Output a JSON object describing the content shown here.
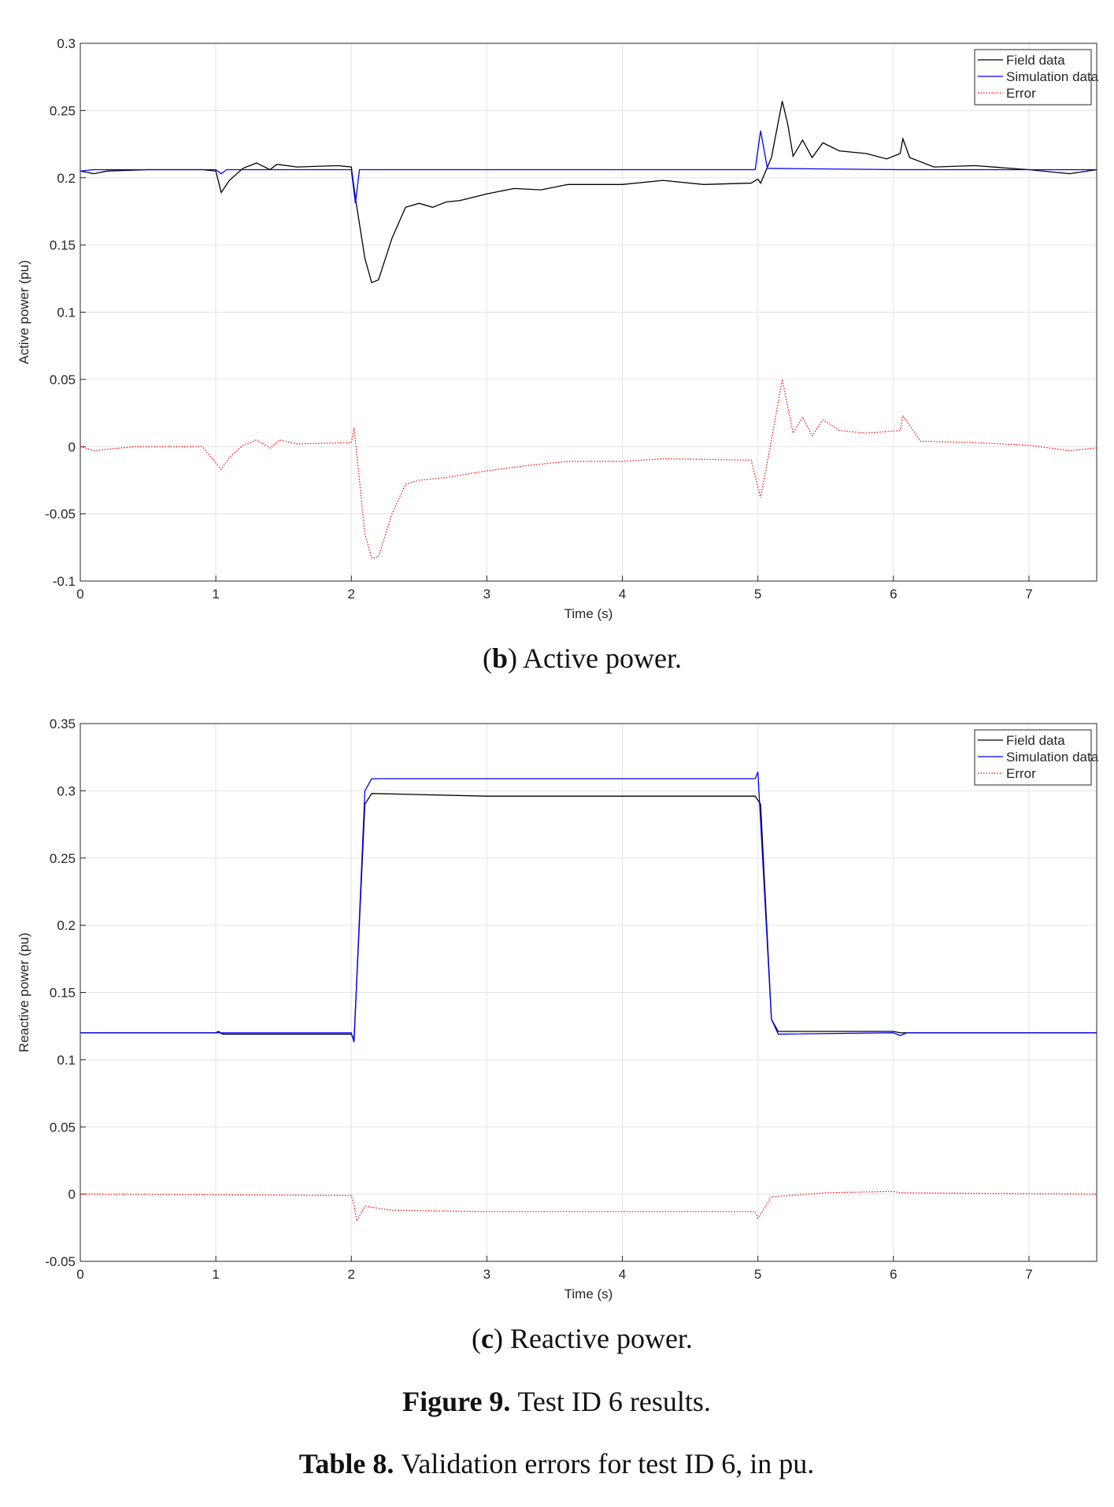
{
  "chart_data": [
    {
      "type": "line",
      "ylabel": "Active power (pu)",
      "xlabel": "Time (s)",
      "caption_parts": [
        "(",
        "b",
        ") Active power."
      ],
      "xlim": [
        0,
        7.5
      ],
      "xticks": [
        0,
        1,
        2,
        3,
        4,
        5,
        6,
        7
      ],
      "ylim": [
        -0.1,
        0.3
      ],
      "yticks": [
        -0.1,
        -0.05,
        0,
        0.05,
        0.1,
        0.15,
        0.2,
        0.25,
        0.3
      ],
      "grid": true,
      "legend": "upper right",
      "series": [
        {
          "name": "Field data",
          "color": "#000000",
          "style": "solid",
          "x": [
            0,
            0.1,
            0.2,
            0.5,
            0.9,
            1.0,
            1.04,
            1.1,
            1.2,
            1.3,
            1.4,
            1.45,
            1.6,
            1.9,
            2.0,
            2.03,
            2.1,
            2.15,
            2.2,
            2.3,
            2.4,
            2.5,
            2.6,
            2.7,
            2.8,
            3.0,
            3.2,
            3.4,
            3.6,
            4.0,
            4.3,
            4.6,
            4.95,
            5.0,
            5.02,
            5.1,
            5.18,
            5.22,
            5.26,
            5.33,
            5.4,
            5.48,
            5.6,
            5.8,
            5.95,
            6.05,
            6.07,
            6.12,
            6.3,
            6.6,
            7.0,
            7.3,
            7.5
          ],
          "values": [
            0.205,
            0.203,
            0.205,
            0.206,
            0.206,
            0.205,
            0.189,
            0.198,
            0.207,
            0.211,
            0.206,
            0.21,
            0.208,
            0.209,
            0.208,
            0.185,
            0.14,
            0.122,
            0.124,
            0.155,
            0.178,
            0.181,
            0.178,
            0.182,
            0.183,
            0.188,
            0.192,
            0.191,
            0.195,
            0.195,
            0.198,
            0.195,
            0.196,
            0.199,
            0.196,
            0.215,
            0.257,
            0.24,
            0.216,
            0.228,
            0.215,
            0.226,
            0.22,
            0.218,
            0.214,
            0.218,
            0.229,
            0.215,
            0.208,
            0.209,
            0.206,
            0.203,
            0.206
          ]
        },
        {
          "name": "Simulation data",
          "color": "#0000ff",
          "style": "solid",
          "x": [
            0,
            0.1,
            0.5,
            1.0,
            1.04,
            1.08,
            2.0,
            2.03,
            2.06,
            4.98,
            5.02,
            5.07,
            6.05,
            7.5
          ],
          "values": [
            0.205,
            0.206,
            0.206,
            0.206,
            0.203,
            0.206,
            0.206,
            0.181,
            0.206,
            0.206,
            0.235,
            0.207,
            0.206,
            0.206
          ]
        },
        {
          "name": "Error",
          "color": "#ff0000",
          "style": "dotted",
          "x": [
            0,
            0.1,
            0.4,
            0.9,
            1.04,
            1.1,
            1.2,
            1.3,
            1.4,
            1.47,
            1.6,
            2.0,
            2.02,
            2.1,
            2.15,
            2.2,
            2.3,
            2.4,
            2.5,
            2.7,
            3.0,
            3.3,
            3.6,
            4.0,
            4.3,
            4.95,
            5.02,
            5.1,
            5.18,
            5.26,
            5.33,
            5.4,
            5.48,
            5.6,
            5.8,
            6.05,
            6.07,
            6.2,
            6.6,
            7.0,
            7.3,
            7.5
          ],
          "values": [
            0,
            -0.003,
            0,
            0,
            -0.017,
            -0.008,
            0.001,
            0.005,
            -0.001,
            0.005,
            0.002,
            0.003,
            0.014,
            -0.065,
            -0.083,
            -0.082,
            -0.05,
            -0.028,
            -0.025,
            -0.023,
            -0.018,
            -0.014,
            -0.011,
            -0.011,
            -0.009,
            -0.01,
            -0.038,
            0.005,
            0.05,
            0.01,
            0.022,
            0.008,
            0.02,
            0.012,
            0.01,
            0.012,
            0.023,
            0.004,
            0.003,
            0.001,
            -0.003,
            -0.001
          ]
        }
      ]
    },
    {
      "type": "line",
      "ylabel": "Reactive power (pu)",
      "xlabel": "Time (s)",
      "caption_parts": [
        "(",
        "c",
        ") Reactive power."
      ],
      "xlim": [
        0,
        7.5
      ],
      "xticks": [
        0,
        1,
        2,
        3,
        4,
        5,
        6,
        7
      ],
      "ylim": [
        -0.05,
        0.35
      ],
      "yticks": [
        -0.05,
        0,
        0.05,
        0.1,
        0.15,
        0.2,
        0.25,
        0.3,
        0.35
      ],
      "grid": true,
      "legend": "upper right",
      "series": [
        {
          "name": "Field data",
          "color": "#000000",
          "style": "solid",
          "x": [
            0,
            1.0,
            1.02,
            1.05,
            2.0,
            2.02,
            2.1,
            2.15,
            3.0,
            4.0,
            4.98,
            5.02,
            5.1,
            5.15,
            6.0,
            6.05,
            7.5
          ],
          "values": [
            0.12,
            0.12,
            0.121,
            0.119,
            0.119,
            0.115,
            0.29,
            0.298,
            0.296,
            0.296,
            0.296,
            0.29,
            0.13,
            0.121,
            0.121,
            0.12,
            0.12
          ]
        },
        {
          "name": "Simulation data",
          "color": "#0000ff",
          "style": "solid",
          "x": [
            0,
            2.0,
            2.02,
            2.1,
            2.15,
            4.98,
            5.0,
            5.1,
            5.15,
            6.0,
            6.05,
            6.1,
            7.5
          ],
          "values": [
            0.12,
            0.12,
            0.113,
            0.3,
            0.309,
            0.309,
            0.314,
            0.13,
            0.119,
            0.12,
            0.118,
            0.12,
            0.12
          ]
        },
        {
          "name": "Error",
          "color": "#ff0000",
          "style": "dotted",
          "x": [
            0,
            2.0,
            2.02,
            2.04,
            2.1,
            2.3,
            3.0,
            4.0,
            4.98,
            5.0,
            5.1,
            5.5,
            6.0,
            6.05,
            7.5
          ],
          "values": [
            0,
            -0.001,
            -0.008,
            -0.02,
            -0.009,
            -0.012,
            -0.013,
            -0.013,
            -0.013,
            -0.018,
            -0.002,
            0.001,
            0.002,
            0.001,
            0
          ]
        }
      ]
    }
  ],
  "figure_caption": {
    "label": "Figure 9.",
    "text": "Test ID 6 results."
  },
  "table_caption": {
    "label": "Table 8.",
    "text": "Validation errors for test ID 6, in pu."
  }
}
